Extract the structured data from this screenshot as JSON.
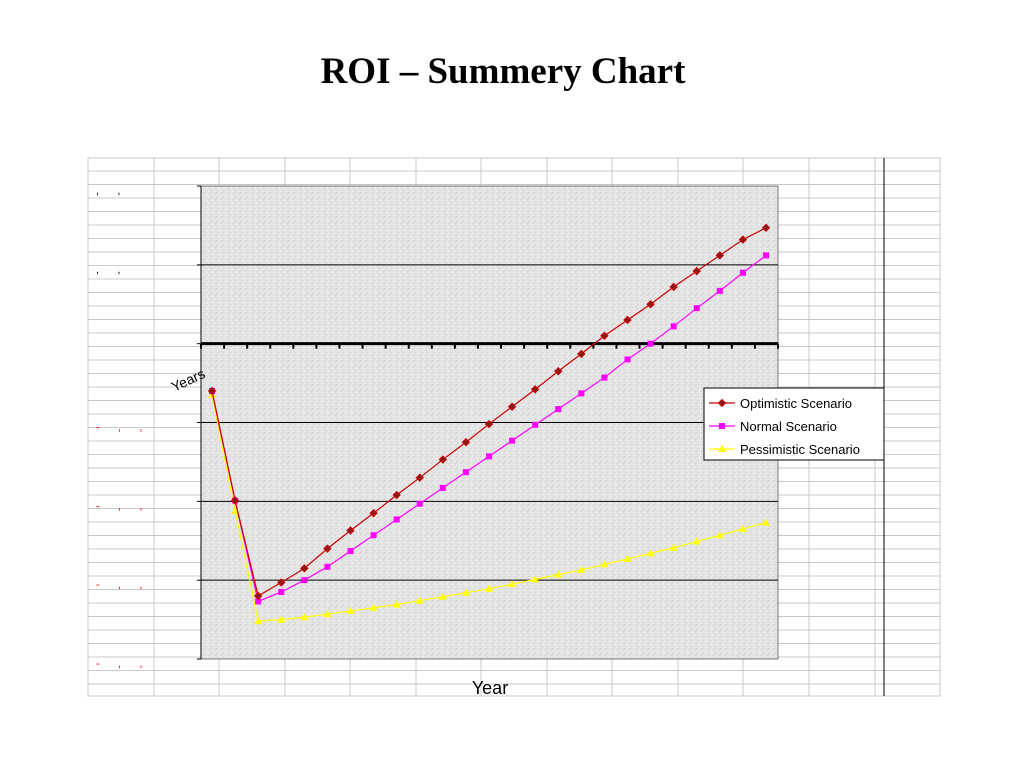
{
  "slide": {
    "title": "ROI – Summery Chart"
  },
  "colors": {
    "optimistic": "#cc0000",
    "optimistic_marker": "#8b1a1a",
    "normal": "#ff00ff",
    "pessimistic": "#ffff00",
    "grid": "#c8c8c8",
    "plot_bg": "#e6e6e6",
    "negative_tick": "#ff0000"
  },
  "chart_data": {
    "type": "line",
    "title": "",
    "xlabel": "Year",
    "ylabel": "Years",
    "x": [
      1,
      2,
      3,
      4,
      5,
      6,
      7,
      8,
      9,
      10,
      11,
      12,
      13,
      14,
      15,
      16,
      17,
      18,
      19,
      20,
      21,
      22,
      23,
      24,
      25
    ],
    "ylim": [
      -4,
      2
    ],
    "ygrid": true,
    "legend_position": "right",
    "y_tick_labels": [
      {
        "value": 2,
        "text": ", ,",
        "negative": false
      },
      {
        "value": 1,
        "text": ", ,",
        "negative": false
      },
      {
        "value": 0,
        "text": "",
        "negative": false
      },
      {
        "value": -1,
        "text": "- , ,",
        "negative": true
      },
      {
        "value": -2,
        "text": "- , ,",
        "negative": true
      },
      {
        "value": -3,
        "text": "- , ,",
        "negative": true
      },
      {
        "value": -4,
        "text": "- , ,",
        "negative": true
      }
    ],
    "series": [
      {
        "name": "Optimistic Scenario",
        "marker": "diamond",
        "values": [
          -0.6,
          -1.99,
          -3.2,
          -3.03,
          -2.85,
          -2.6,
          -2.37,
          -2.15,
          -1.92,
          -1.7,
          -1.47,
          -1.25,
          -1.02,
          -0.8,
          -0.58,
          -0.35,
          -0.13,
          0.1,
          0.3,
          0.5,
          0.72,
          0.92,
          1.12,
          1.32,
          1.47
        ]
      },
      {
        "name": "Normal Scenario",
        "marker": "square",
        "values": [
          -0.6,
          -1.99,
          -3.27,
          -3.15,
          -3.0,
          -2.83,
          -2.63,
          -2.43,
          -2.23,
          -2.03,
          -1.83,
          -1.63,
          -1.43,
          -1.23,
          -1.03,
          -0.83,
          -0.63,
          -0.43,
          -0.2,
          0.0,
          0.22,
          0.45,
          0.67,
          0.9,
          1.12
        ]
      },
      {
        "name": "Pessimistic Scenario",
        "marker": "triangle",
        "values": [
          -0.65,
          -2.12,
          -3.52,
          -3.5,
          -3.47,
          -3.43,
          -3.39,
          -3.35,
          -3.31,
          -3.26,
          -3.21,
          -3.16,
          -3.11,
          -3.05,
          -2.99,
          -2.93,
          -2.87,
          -2.8,
          -2.73,
          -2.66,
          -2.59,
          -2.51,
          -2.43,
          -2.35,
          -2.27
        ]
      }
    ]
  }
}
